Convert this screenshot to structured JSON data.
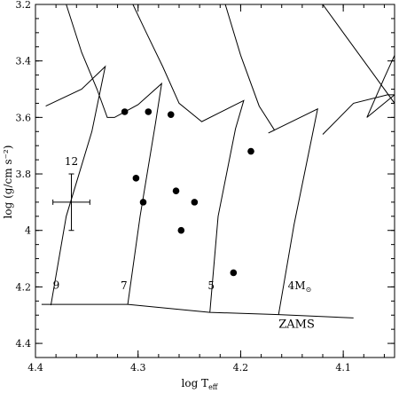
{
  "chart_data": {
    "type": "scatter",
    "title": "",
    "xlabel": "log T",
    "xlabel_sub": "eff",
    "ylabel": "log (g/cm s⁻²)",
    "xlim": [
      4.4,
      4.05
    ],
    "ylim": [
      4.45,
      3.2
    ],
    "x_ticks": [
      4.4,
      4.3,
      4.2,
      4.1
    ],
    "x_tick_labels": [
      "4.4",
      "4.3",
      "4.2",
      "4.1"
    ],
    "y_ticks": [
      3.2,
      3.4,
      3.6,
      3.8,
      4.0,
      4.2,
      4.4
    ],
    "y_tick_labels": [
      "3.2",
      "3.4",
      "3.6",
      "3.8",
      "4",
      "4.2",
      "4.4"
    ],
    "points": [
      {
        "x": 4.313,
        "y": 3.58
      },
      {
        "x": 4.29,
        "y": 3.58
      },
      {
        "x": 4.268,
        "y": 3.59
      },
      {
        "x": 4.302,
        "y": 3.815
      },
      {
        "x": 4.295,
        "y": 3.9
      },
      {
        "x": 4.263,
        "y": 3.86
      },
      {
        "x": 4.245,
        "y": 3.9
      },
      {
        "x": 4.258,
        "y": 4.0
      },
      {
        "x": 4.19,
        "y": 3.72
      },
      {
        "x": 4.207,
        "y": 4.15
      }
    ],
    "error_bar": {
      "x": 4.365,
      "y": 3.9,
      "x_err": 0.018,
      "y_err": 0.1,
      "label": "12"
    },
    "tracks": [
      {
        "label": "9",
        "label_at": [
          4.383,
          4.207
        ],
        "points": [
          [
            4.385,
            4.265
          ],
          [
            4.37,
            3.95
          ],
          [
            4.345,
            3.65
          ],
          [
            4.332,
            3.42
          ],
          [
            4.355,
            3.5
          ],
          [
            4.39,
            3.56
          ]
        ]
      },
      {
        "label": "7",
        "label_at": [
          4.317,
          4.208
        ],
        "points": [
          [
            4.31,
            4.262
          ],
          [
            4.298,
            3.95
          ],
          [
            4.283,
            3.62
          ],
          [
            4.277,
            3.48
          ],
          [
            4.3,
            3.555
          ],
          [
            4.323,
            3.6
          ],
          [
            4.33,
            3.6
          ],
          [
            4.34,
            3.5
          ],
          [
            4.355,
            3.37
          ],
          [
            4.37,
            3.2
          ]
        ]
      },
      {
        "label": "5",
        "label_at": [
          4.232,
          4.208
        ],
        "points": [
          [
            4.23,
            4.29
          ],
          [
            4.222,
            3.95
          ],
          [
            4.205,
            3.64
          ],
          [
            4.197,
            3.54
          ],
          [
            4.238,
            3.615
          ],
          [
            4.26,
            3.55
          ],
          [
            4.276,
            3.42
          ],
          [
            4.292,
            3.3
          ],
          [
            4.305,
            3.2
          ]
        ]
      },
      {
        "label": "4M",
        "label_sub": "⊙",
        "label_at": [
          4.154,
          4.208
        ],
        "points": [
          [
            4.163,
            4.298
          ],
          [
            4.148,
            3.98
          ],
          [
            4.13,
            3.66
          ],
          [
            4.125,
            3.57
          ],
          [
            4.173,
            3.655
          ],
          [
            4.167,
            3.645
          ],
          [
            4.182,
            3.56
          ],
          [
            4.2,
            3.38
          ],
          [
            4.215,
            3.2
          ]
        ]
      },
      {
        "label": "",
        "points": [
          [
            4.12,
            3.66
          ],
          [
            4.09,
            3.55
          ],
          [
            4.057,
            3.52
          ],
          [
            4.05,
            3.52
          ],
          [
            4.077,
            3.6
          ],
          [
            4.06,
            3.46
          ],
          [
            4.05,
            3.38
          ]
        ]
      },
      {
        "label": "",
        "points": [
          [
            4.12,
            3.2
          ],
          [
            4.1,
            3.3
          ],
          [
            4.07,
            3.45
          ],
          [
            4.05,
            3.55
          ]
        ]
      }
    ],
    "zams": {
      "label": "ZAMS",
      "label_at": [
        4.163,
        4.345
      ],
      "points": [
        [
          4.394,
          4.262
        ],
        [
          4.31,
          4.262
        ],
        [
          4.23,
          4.29
        ],
        [
          4.163,
          4.298
        ],
        [
          4.09,
          4.31
        ]
      ]
    },
    "grid": false,
    "legend": "none"
  }
}
